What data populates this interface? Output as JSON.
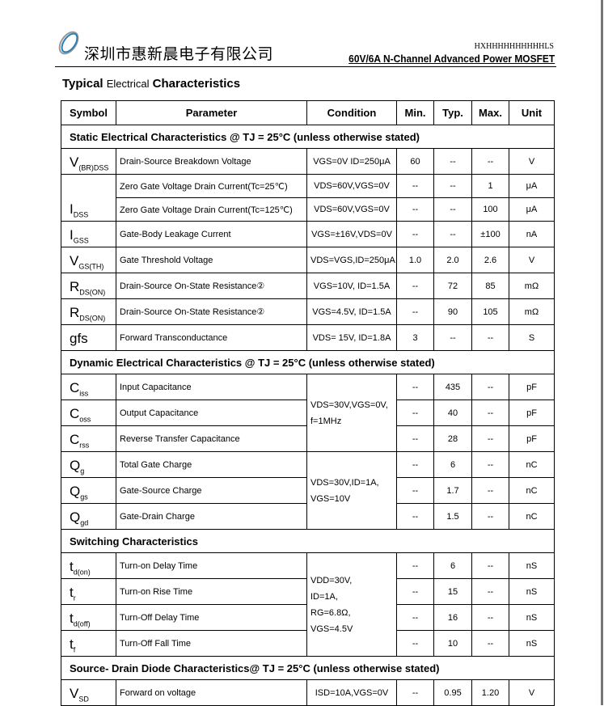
{
  "header": {
    "company": "深圳市惠新晨电子有限公司",
    "part_number": "HXHHHHHHHHHHLS",
    "subtitle": "60V/6A N-Channel Advanced Power MOSFET"
  },
  "title": {
    "bold1": "Typical",
    "small": "Electrical",
    "bold2": "Characteristics"
  },
  "columns": [
    "Symbol",
    "Parameter",
    "Condition",
    "Min.",
    "Typ.",
    "Max.",
    "Unit"
  ],
  "sections": {
    "static": "Static Electrical Characteristics @ TJ = 25°C (unless otherwise stated)",
    "dynamic": "Dynamic Electrical Characteristics @ TJ = 25°C (unless otherwise stated)",
    "switching": "Switching Characteristics",
    "diode": "Source- Drain Diode Characteristics@ TJ = 25°C (unless otherwise stated)"
  },
  "rows": {
    "vbr": {
      "sym": "V",
      "sub": "(BR)DSS",
      "param": "Drain-Source Breakdown Voltage",
      "cond": "VGS=0V ID=250μA",
      "min": "60",
      "typ": "--",
      "max": "--",
      "unit": "V"
    },
    "idss1": {
      "sym": "I",
      "sub": "DSS",
      "param": "Zero Gate Voltage Drain Current(Tc=25℃)",
      "cond": "VDS=60V,VGS=0V",
      "min": "--",
      "typ": "--",
      "max": "1",
      "unit": "μA"
    },
    "idss2": {
      "param": "Zero Gate Voltage Drain Current(Tc=125℃)",
      "cond": "VDS=60V,VGS=0V",
      "min": "--",
      "typ": "--",
      "max": "100",
      "unit": "μA"
    },
    "igss": {
      "sym": "I",
      "sub": "GSS",
      "param": "Gate-Body Leakage Current",
      "cond": "VGS=±16V,VDS=0V",
      "min": "--",
      "typ": "--",
      "max": "±100",
      "unit": "nA"
    },
    "vgsth": {
      "sym": "V",
      "sub": "GS(TH)",
      "param": "Gate Threshold Voltage",
      "cond": "VDS=VGS,ID=250μA",
      "min": "1.0",
      "typ": "2.0",
      "max": "2.6",
      "unit": "V"
    },
    "rds1": {
      "sym": "R",
      "sub": "DS(ON)",
      "param": "Drain-Source On-State Resistance②",
      "cond": "VGS=10V, ID=1.5A",
      "min": "--",
      "typ": "72",
      "max": "85",
      "unit": "mΩ"
    },
    "rds2": {
      "sym": "R",
      "sub": "DS(ON)",
      "param": "Drain-Source On-State Resistance②",
      "cond": "VGS=4.5V, ID=1.5A",
      "min": "--",
      "typ": "90",
      "max": "105",
      "unit": "mΩ"
    },
    "gfs": {
      "sym": "gfs",
      "sub": "",
      "param": "Forward Transconductance",
      "cond": "VDS= 15V, ID=1.8A",
      "min": "3",
      "typ": "--",
      "max": "--",
      "unit": "S"
    },
    "ciss": {
      "sym": "C",
      "sub": "iss",
      "param": "Input Capacitance",
      "min": "--",
      "typ": "435",
      "max": "--",
      "unit": "pF"
    },
    "coss": {
      "sym": "C",
      "sub": "oss",
      "param": "Output Capacitance",
      "min": "--",
      "typ": "40",
      "max": "--",
      "unit": "pF"
    },
    "crss": {
      "sym": "C",
      "sub": "rss",
      "param": "Reverse Transfer Capacitance",
      "min": "--",
      "typ": "28",
      "max": "--",
      "unit": "pF"
    },
    "qg": {
      "sym": "Q",
      "sub": "g",
      "param": "Total Gate Charge",
      "min": "--",
      "typ": "6",
      "max": "--",
      "unit": "nC"
    },
    "qgs": {
      "sym": "Q",
      "sub": "gs",
      "param": "Gate-Source Charge",
      "min": "--",
      "typ": "1.7",
      "max": "--",
      "unit": "nC"
    },
    "qgd": {
      "sym": "Q",
      "sub": "gd",
      "param": "Gate-Drain Charge",
      "min": "--",
      "typ": "1.5",
      "max": "--",
      "unit": "nC"
    },
    "tdon": {
      "sym": "t",
      "sub": "d(on)",
      "param": "Turn-on Delay Time",
      "min": "--",
      "typ": "6",
      "max": "--",
      "unit": "nS"
    },
    "tr": {
      "sym": "t",
      "sub": "r",
      "param": "Turn-on Rise Time",
      "min": "--",
      "typ": "15",
      "max": "--",
      "unit": "nS"
    },
    "tdoff": {
      "sym": "t",
      "sub": "d(off)",
      "param": "Turn-Off Delay Time",
      "min": "--",
      "typ": "16",
      "max": "--",
      "unit": "nS"
    },
    "tf": {
      "sym": "t",
      "sub": "f",
      "param": "Turn-Off Fall Time",
      "min": "--",
      "typ": "10",
      "max": "--",
      "unit": "nS"
    },
    "vsd": {
      "sym": "V",
      "sub": "SD",
      "param": "Forward on voltage",
      "cond": "ISD=10A,VGS=0V",
      "min": "--",
      "typ": "0.95",
      "max": "1.20",
      "unit": "V"
    }
  },
  "group_conditions": {
    "cap": [
      "VDS=30V,VGS=0V,",
      "f=1MHz"
    ],
    "charge": [
      "VDS=30V,ID=1A,",
      "VGS=10V"
    ],
    "switch": [
      "VDD=30V,",
      "ID=1A,",
      "RG=6.8Ω,",
      "VGS=4.5V"
    ]
  }
}
